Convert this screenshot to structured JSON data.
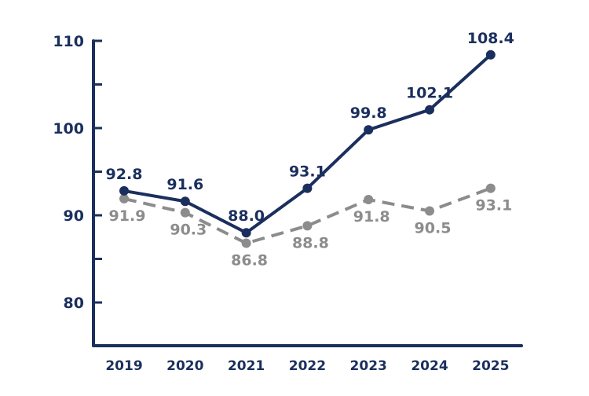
{
  "chart_data": {
    "type": "line",
    "title": "",
    "xlabel": "",
    "ylabel": "",
    "categories": [
      "2019",
      "2020",
      "2021",
      "2022",
      "2023",
      "2024",
      "2025"
    ],
    "ylim": [
      75,
      110
    ],
    "yticks": [
      80,
      90,
      100,
      110
    ],
    "yticks_minor": [
      85,
      95,
      105
    ],
    "ytick_labels": [
      "80",
      "90",
      "100",
      "110"
    ],
    "grid": false,
    "legend": "none",
    "series": [
      {
        "values": [
          92.8,
          91.6,
          88.0,
          93.1,
          99.8,
          102.1,
          108.4
        ],
        "labels": [
          "92.8",
          "91.6",
          "88.0",
          "93.1",
          "99.8",
          "102.1",
          "108.4"
        ],
        "color": "#1b2f5e",
        "style": "solid",
        "label_position": "above"
      },
      {
        "values": [
          91.9,
          90.3,
          86.8,
          88.8,
          91.8,
          90.5,
          93.1
        ],
        "labels": [
          "91.9",
          "90.3",
          "86.8",
          "88.8",
          "91.8",
          "90.5",
          "93.1"
        ],
        "color": "#8c8c8c",
        "style": "dashed",
        "label_position": "below"
      }
    ],
    "axis_color": "#1b2f5e"
  }
}
